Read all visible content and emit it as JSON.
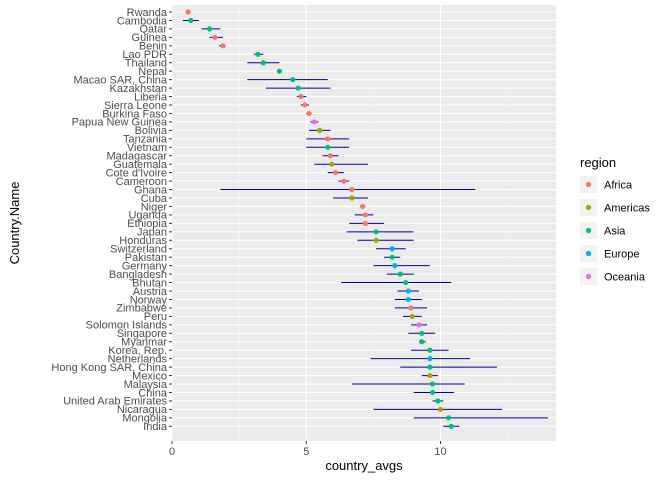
{
  "chart_data": {
    "type": "scatter",
    "subtype": "dot-with-horizontal-interval",
    "xlabel": "country_avgs",
    "ylabel": "Country.Name",
    "xlim": [
      0,
      14.3
    ],
    "x_ticks": [
      0,
      5,
      10
    ],
    "grid": true,
    "legend_position": "right",
    "legend_title": "region",
    "interval_color": "#00008B",
    "regions": [
      {
        "name": "Africa",
        "color": "#F8766D"
      },
      {
        "name": "Americas",
        "color": "#A3A500"
      },
      {
        "name": "Asia",
        "color": "#00BF7D"
      },
      {
        "name": "Europe",
        "color": "#00B0F6"
      },
      {
        "name": "Oceania",
        "color": "#E76BF3"
      }
    ],
    "points": [
      {
        "country": "Rwanda",
        "region": "Africa",
        "x": 0.6,
        "lo": 0.6,
        "hi": 0.6
      },
      {
        "country": "Cambodia",
        "region": "Asia",
        "x": 0.7,
        "lo": 0.4,
        "hi": 1.0
      },
      {
        "country": "Qatar",
        "region": "Asia",
        "x": 1.4,
        "lo": 1.1,
        "hi": 1.8
      },
      {
        "country": "Guinea",
        "region": "Africa",
        "x": 1.6,
        "lo": 1.4,
        "hi": 1.9
      },
      {
        "country": "Benin",
        "region": "Africa",
        "x": 1.9,
        "lo": 1.75,
        "hi": 2.0
      },
      {
        "country": "Lao PDR",
        "region": "Asia",
        "x": 3.2,
        "lo": 3.05,
        "hi": 3.4
      },
      {
        "country": "Thailand",
        "region": "Asia",
        "x": 3.4,
        "lo": 2.8,
        "hi": 4.0
      },
      {
        "country": "Nepal",
        "region": "Asia",
        "x": 4.0,
        "lo": 4.0,
        "hi": 4.0
      },
      {
        "country": "Macao SAR, China",
        "region": "Asia",
        "x": 4.5,
        "lo": 2.8,
        "hi": 5.8
      },
      {
        "country": "Kazakhstan",
        "region": "Asia",
        "x": 4.7,
        "lo": 3.5,
        "hi": 5.9
      },
      {
        "country": "Liberia",
        "region": "Africa",
        "x": 4.8,
        "lo": 4.65,
        "hi": 5.0
      },
      {
        "country": "Sierra Leone",
        "region": "Africa",
        "x": 4.95,
        "lo": 4.8,
        "hi": 5.1
      },
      {
        "country": "Burkina Faso",
        "region": "Africa",
        "x": 5.1,
        "lo": 5.0,
        "hi": 5.2
      },
      {
        "country": "Papua New Guinea",
        "region": "Oceania",
        "x": 5.3,
        "lo": 5.15,
        "hi": 5.45
      },
      {
        "country": "Bolivia",
        "region": "Americas",
        "x": 5.5,
        "lo": 5.1,
        "hi": 5.9
      },
      {
        "country": "Tanzania",
        "region": "Africa",
        "x": 5.8,
        "lo": 5.0,
        "hi": 6.6
      },
      {
        "country": "Vietnam",
        "region": "Asia",
        "x": 5.8,
        "lo": 5.0,
        "hi": 6.6
      },
      {
        "country": "Madagascar",
        "region": "Africa",
        "x": 5.9,
        "lo": 5.6,
        "hi": 6.2
      },
      {
        "country": "Guatemala",
        "region": "Americas",
        "x": 5.95,
        "lo": 5.3,
        "hi": 7.3
      },
      {
        "country": "Cote d'Ivoire",
        "region": "Africa",
        "x": 6.1,
        "lo": 5.8,
        "hi": 6.4
      },
      {
        "country": "Cameroon",
        "region": "Africa",
        "x": 6.4,
        "lo": 6.2,
        "hi": 6.6
      },
      {
        "country": "Ghana",
        "region": "Africa",
        "x": 6.7,
        "lo": 1.8,
        "hi": 11.3
      },
      {
        "country": "Cuba",
        "region": "Americas",
        "x": 6.7,
        "lo": 6.0,
        "hi": 7.3
      },
      {
        "country": "Niger",
        "region": "Africa",
        "x": 7.1,
        "lo": 7.0,
        "hi": 7.2
      },
      {
        "country": "Uganda",
        "region": "Africa",
        "x": 7.2,
        "lo": 6.8,
        "hi": 7.5
      },
      {
        "country": "Ethiopia",
        "region": "Africa",
        "x": 7.2,
        "lo": 6.6,
        "hi": 7.9
      },
      {
        "country": "Japan",
        "region": "Asia",
        "x": 7.6,
        "lo": 6.5,
        "hi": 9.0
      },
      {
        "country": "Honduras",
        "region": "Americas",
        "x": 7.6,
        "lo": 6.9,
        "hi": 9.0
      },
      {
        "country": "Switzerland",
        "region": "Europe",
        "x": 8.2,
        "lo": 7.6,
        "hi": 8.7
      },
      {
        "country": "Pakistan",
        "region": "Asia",
        "x": 8.2,
        "lo": 7.9,
        "hi": 8.5
      },
      {
        "country": "Germany",
        "region": "Europe",
        "x": 8.3,
        "lo": 7.5,
        "hi": 9.6
      },
      {
        "country": "Bangladesh",
        "region": "Asia",
        "x": 8.5,
        "lo": 8.0,
        "hi": 9.0
      },
      {
        "country": "Bhutan",
        "region": "Asia",
        "x": 8.7,
        "lo": 6.3,
        "hi": 10.4
      },
      {
        "country": "Austria",
        "region": "Europe",
        "x": 8.8,
        "lo": 8.4,
        "hi": 9.2
      },
      {
        "country": "Norway",
        "region": "Europe",
        "x": 8.8,
        "lo": 8.3,
        "hi": 9.3
      },
      {
        "country": "Zimbabwe",
        "region": "Africa",
        "x": 8.9,
        "lo": 8.3,
        "hi": 9.5
      },
      {
        "country": "Peru",
        "region": "Americas",
        "x": 8.95,
        "lo": 8.6,
        "hi": 9.3
      },
      {
        "country": "Solomon Islands",
        "region": "Oceania",
        "x": 9.2,
        "lo": 8.9,
        "hi": 9.5
      },
      {
        "country": "Singapore",
        "region": "Asia",
        "x": 9.3,
        "lo": 8.8,
        "hi": 9.8
      },
      {
        "country": "Myanmar",
        "region": "Asia",
        "x": 9.3,
        "lo": 9.2,
        "hi": 9.45
      },
      {
        "country": "Korea, Rep.",
        "region": "Asia",
        "x": 9.6,
        "lo": 8.9,
        "hi": 10.3
      },
      {
        "country": "Netherlands",
        "region": "Europe",
        "x": 9.6,
        "lo": 7.4,
        "hi": 11.1
      },
      {
        "country": "Hong Kong SAR, China",
        "region": "Asia",
        "x": 9.6,
        "lo": 8.5,
        "hi": 12.1
      },
      {
        "country": "Mexico",
        "region": "Americas",
        "x": 9.6,
        "lo": 9.3,
        "hi": 9.9
      },
      {
        "country": "Malaysia",
        "region": "Asia",
        "x": 9.7,
        "lo": 6.7,
        "hi": 10.9
      },
      {
        "country": "China",
        "region": "Asia",
        "x": 9.7,
        "lo": 9.0,
        "hi": 10.5
      },
      {
        "country": "United Arab Emirates",
        "region": "Asia",
        "x": 9.9,
        "lo": 9.7,
        "hi": 10.1
      },
      {
        "country": "Nicaragua",
        "region": "Americas",
        "x": 10.0,
        "lo": 7.5,
        "hi": 12.3
      },
      {
        "country": "Mongolia",
        "region": "Asia",
        "x": 10.3,
        "lo": 9.0,
        "hi": 14.0
      },
      {
        "country": "India",
        "region": "Asia",
        "x": 10.4,
        "lo": 10.1,
        "hi": 10.7
      }
    ]
  }
}
